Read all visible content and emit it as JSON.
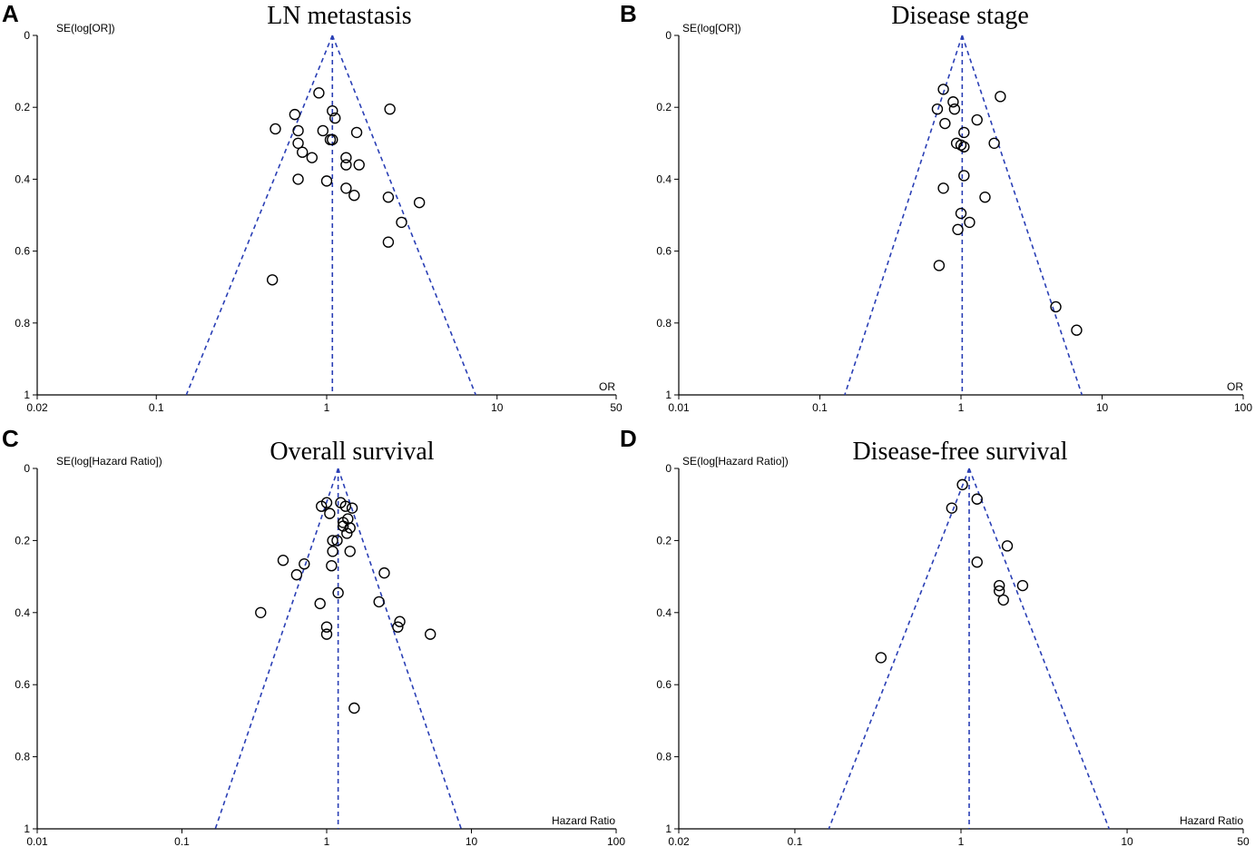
{
  "chart_data": [
    {
      "type": "scatter",
      "panel": "A",
      "title": "LN metastasis",
      "ylabel": "SE(log[OR])",
      "xlabel": "OR",
      "xscale": "log",
      "xlim": [
        0.02,
        50
      ],
      "ylim": [
        0,
        1
      ],
      "xticks": [
        0.02,
        0.1,
        1,
        10,
        50
      ],
      "xtick_labels": [
        "0.02",
        "0.1",
        "1",
        "10",
        "50"
      ],
      "yticks": [
        0,
        0.2,
        0.4,
        0.6,
        0.8,
        1
      ],
      "ytick_labels": [
        "0",
        "0.2",
        "0.4",
        "0.6",
        "0.8",
        "1"
      ],
      "pooled_effect": 1.08,
      "funnel_bottom": [
        0.15,
        7.5
      ],
      "points": [
        [
          0.9,
          0.16
        ],
        [
          1.08,
          0.21
        ],
        [
          2.35,
          0.205
        ],
        [
          0.65,
          0.22
        ],
        [
          1.12,
          0.23
        ],
        [
          0.5,
          0.26
        ],
        [
          0.95,
          0.265
        ],
        [
          0.68,
          0.265
        ],
        [
          1.05,
          0.29
        ],
        [
          1.08,
          0.29
        ],
        [
          1.5,
          0.27
        ],
        [
          0.68,
          0.3
        ],
        [
          0.72,
          0.325
        ],
        [
          0.82,
          0.34
        ],
        [
          1.3,
          0.34
        ],
        [
          1.3,
          0.36
        ],
        [
          1.55,
          0.36
        ],
        [
          0.68,
          0.4
        ],
        [
          1.0,
          0.405
        ],
        [
          1.3,
          0.425
        ],
        [
          1.45,
          0.445
        ],
        [
          2.3,
          0.45
        ],
        [
          3.5,
          0.465
        ],
        [
          2.75,
          0.52
        ],
        [
          2.3,
          0.575
        ],
        [
          0.48,
          0.68
        ]
      ]
    },
    {
      "type": "scatter",
      "panel": "B",
      "title": "Disease stage",
      "ylabel": "SE(log[OR])",
      "xlabel": "OR",
      "xscale": "log",
      "xlim": [
        0.01,
        100
      ],
      "ylim": [
        0,
        1
      ],
      "xticks": [
        0.01,
        0.1,
        1,
        10,
        100
      ],
      "xtick_labels": [
        "0.01",
        "0.1",
        "1",
        "10",
        "100"
      ],
      "yticks": [
        0,
        0.2,
        0.4,
        0.6,
        0.8,
        1
      ],
      "ytick_labels": [
        "0",
        "0.2",
        "0.4",
        "0.6",
        "0.8",
        "1"
      ],
      "pooled_effect": 1.02,
      "funnel_bottom": [
        0.15,
        7.2
      ],
      "points": [
        [
          0.75,
          0.15
        ],
        [
          0.88,
          0.185
        ],
        [
          0.9,
          0.205
        ],
        [
          1.9,
          0.17
        ],
        [
          0.68,
          0.205
        ],
        [
          0.77,
          0.245
        ],
        [
          1.3,
          0.235
        ],
        [
          1.05,
          0.27
        ],
        [
          0.93,
          0.3
        ],
        [
          1.0,
          0.305
        ],
        [
          1.05,
          0.31
        ],
        [
          1.72,
          0.3
        ],
        [
          1.05,
          0.39
        ],
        [
          0.75,
          0.425
        ],
        [
          1.48,
          0.45
        ],
        [
          1.0,
          0.495
        ],
        [
          1.15,
          0.52
        ],
        [
          0.95,
          0.54
        ],
        [
          0.7,
          0.64
        ],
        [
          4.7,
          0.755
        ],
        [
          6.6,
          0.82
        ]
      ]
    },
    {
      "type": "scatter",
      "panel": "C",
      "title": "Overall survival",
      "ylabel": "SE(log[Hazard Ratio])",
      "xlabel": "Hazard Ratio",
      "xscale": "log",
      "xlim": [
        0.01,
        100
      ],
      "ylim": [
        0,
        1
      ],
      "xticks": [
        0.01,
        0.1,
        1,
        10,
        100
      ],
      "xtick_labels": [
        "0.01",
        "0.1",
        "1",
        "10",
        "100"
      ],
      "yticks": [
        0,
        0.2,
        0.4,
        0.6,
        0.8,
        1
      ],
      "ytick_labels": [
        "0",
        "0.2",
        "0.4",
        "0.6",
        "0.8",
        "1"
      ],
      "pooled_effect": 1.2,
      "funnel_bottom": [
        0.17,
        8.5
      ],
      "points": [
        [
          0.92,
          0.105
        ],
        [
          1.0,
          0.095
        ],
        [
          1.25,
          0.095
        ],
        [
          1.35,
          0.105
        ],
        [
          1.5,
          0.11
        ],
        [
          1.05,
          0.125
        ],
        [
          1.4,
          0.14
        ],
        [
          1.3,
          0.15
        ],
        [
          1.3,
          0.16
        ],
        [
          1.45,
          0.165
        ],
        [
          1.38,
          0.18
        ],
        [
          1.1,
          0.2
        ],
        [
          1.18,
          0.2
        ],
        [
          1.1,
          0.23
        ],
        [
          1.45,
          0.23
        ],
        [
          0.5,
          0.255
        ],
        [
          0.7,
          0.265
        ],
        [
          1.08,
          0.27
        ],
        [
          2.5,
          0.29
        ],
        [
          0.62,
          0.295
        ],
        [
          1.2,
          0.345
        ],
        [
          0.9,
          0.375
        ],
        [
          2.3,
          0.37
        ],
        [
          0.35,
          0.4
        ],
        [
          3.2,
          0.425
        ],
        [
          3.1,
          0.44
        ],
        [
          1.0,
          0.44
        ],
        [
          1.0,
          0.46
        ],
        [
          5.2,
          0.46
        ],
        [
          1.55,
          0.665
        ]
      ]
    },
    {
      "type": "scatter",
      "panel": "D",
      "title": "Disease-free survival",
      "ylabel": "SE(log[Hazard Ratio])",
      "xlabel": "Hazard Ratio",
      "xscale": "log",
      "xlim": [
        0.02,
        50
      ],
      "ylim": [
        0,
        1
      ],
      "xticks": [
        0.02,
        0.1,
        1,
        10,
        50
      ],
      "xtick_labels": [
        "0.02",
        "0.1",
        "1",
        "10",
        "50"
      ],
      "yticks": [
        0,
        0.2,
        0.4,
        0.6,
        0.8,
        1
      ],
      "ytick_labels": [
        "0",
        "0.2",
        "0.4",
        "0.6",
        "0.8",
        "1"
      ],
      "pooled_effect": 1.12,
      "funnel_bottom": [
        0.16,
        7.8
      ],
      "points": [
        [
          1.02,
          0.045
        ],
        [
          1.25,
          0.085
        ],
        [
          0.88,
          0.11
        ],
        [
          1.9,
          0.215
        ],
        [
          1.25,
          0.26
        ],
        [
          1.7,
          0.325
        ],
        [
          2.35,
          0.325
        ],
        [
          1.7,
          0.34
        ],
        [
          1.8,
          0.365
        ],
        [
          0.33,
          0.525
        ]
      ]
    }
  ],
  "colors": {
    "funnel": "#2a3fb5",
    "axis": "#000000",
    "point": "#000000"
  }
}
